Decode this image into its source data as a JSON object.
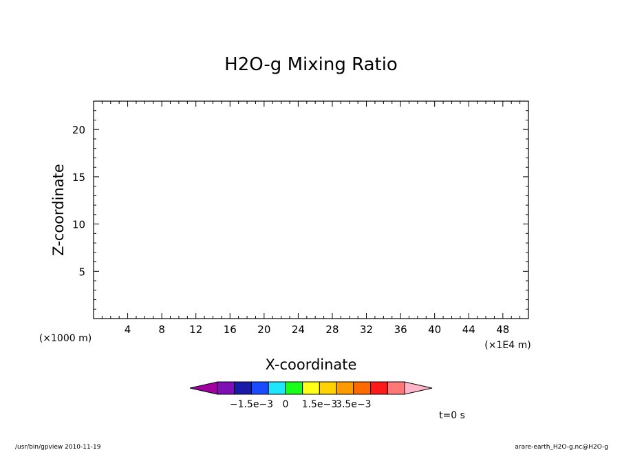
{
  "chart_data": {
    "type": "heatmap",
    "title": "H2O-g Mixing Ratio",
    "xlabel": "X-coordinate",
    "ylabel": "Z-coordinate",
    "x_unit": "(×1E4 m)",
    "y_unit": "(×1000 m)",
    "xlim": [
      0,
      51
    ],
    "ylim": [
      0,
      23
    ],
    "x_ticks": [
      4,
      8,
      12,
      16,
      20,
      24,
      28,
      32,
      36,
      40,
      44,
      48
    ],
    "y_ticks": [
      5,
      10,
      15,
      20
    ],
    "x_minor_step": 1,
    "y_minor_step": 1,
    "grid": false,
    "series": [],
    "colorbar": {
      "colors": [
        "#a000a0",
        "#7d0fb4",
        "#1a1aa8",
        "#1a4bff",
        "#1ee6ff",
        "#1aff1a",
        "#ffff1a",
        "#ffd200",
        "#ff9a00",
        "#ff6a00",
        "#ff1a1a",
        "#ff7878",
        "#ffb4c8"
      ],
      "tick_labels": [
        "−1.5e−3",
        "0",
        "1.5e−3",
        "3.5e−3"
      ],
      "tick_boundaries": [
        2,
        4,
        6,
        8
      ]
    }
  },
  "time_label": "t=0 s",
  "footer": {
    "left": "/usr/bin/gpview  2010-11-19",
    "right": "arare-earth_H2O-g.nc@H2O-g"
  }
}
